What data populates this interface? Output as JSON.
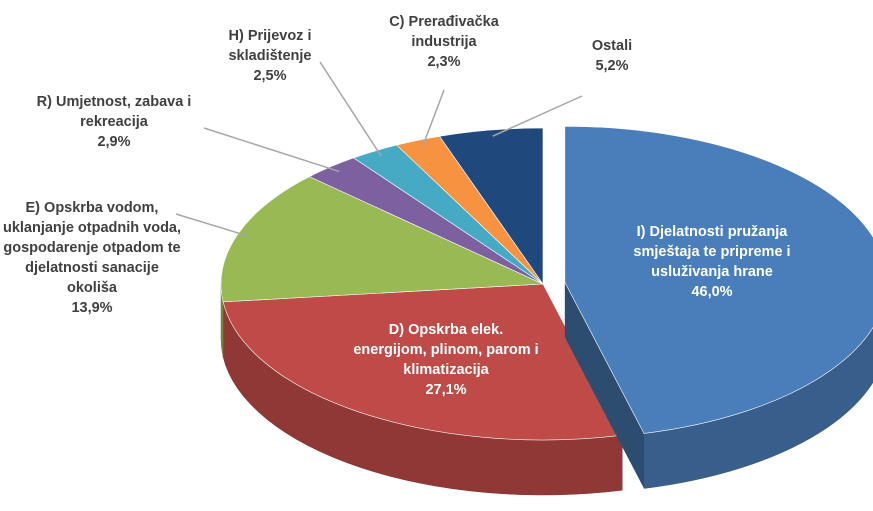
{
  "chart_data": {
    "type": "pie",
    "categories": [
      "I) Djelatnosti pružanja smještaja te pripreme i usluživanja hrane",
      "D) Opskrba elek. energijom, plinom, parom i klimatizacija",
      "E) Opskrba vodom, uklanjanje otpadnih voda, gospodarenje otpadom te djelatnosti sanacije okoliša",
      "R) Umjetnost, zabava i rekreacija",
      "H) Prijevoz i skladištenje",
      "C) Prerađivačka industrija",
      "Ostali"
    ],
    "values": [
      46.0,
      27.1,
      13.9,
      2.9,
      2.5,
      2.3,
      5.2
    ],
    "value_labels": [
      "46,0%",
      "27,1%",
      "13,9%",
      "2,9%",
      "2,5%",
      "2,3%",
      "5,2%"
    ],
    "colors": [
      "#4a7ebb",
      "#be4b48",
      "#98b954",
      "#7d60a0",
      "#46aac5",
      "#f69240",
      "#1f497d"
    ],
    "exploded": [
      0
    ]
  }
}
